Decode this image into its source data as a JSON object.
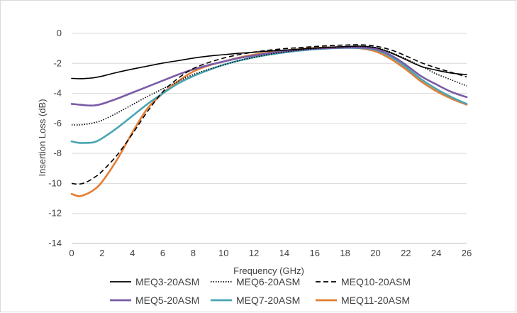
{
  "chart_data": {
    "type": "line",
    "title": "",
    "xlabel": "Frequency (GHz)",
    "ylabel": "Insertion Loss (dB)",
    "xlim": [
      0,
      26
    ],
    "ylim": [
      -14,
      0
    ],
    "x_ticks": [
      0,
      2,
      4,
      6,
      8,
      10,
      12,
      14,
      16,
      18,
      20,
      22,
      24,
      26
    ],
    "y_ticks": [
      0,
      -2,
      -4,
      -6,
      -8,
      -10,
      -12,
      -14
    ],
    "grid": "horizontal",
    "legend_position": "bottom",
    "x": [
      0,
      0.5,
      1,
      1.5,
      2,
      3,
      4,
      5,
      6,
      7,
      8,
      9,
      10,
      11,
      12,
      13,
      14,
      15,
      16,
      17,
      18,
      19,
      20,
      21,
      22,
      23,
      24,
      25,
      26
    ],
    "series": [
      {
        "name": "MEQ3-20ASM",
        "color": "#000000",
        "dash": "solid",
        "values": [
          -3.0,
          -3.02,
          -3.0,
          -2.95,
          -2.85,
          -2.6,
          -2.38,
          -2.18,
          -1.98,
          -1.82,
          -1.65,
          -1.52,
          -1.42,
          -1.33,
          -1.26,
          -1.18,
          -1.12,
          -1.05,
          -0.98,
          -0.92,
          -0.88,
          -0.85,
          -0.95,
          -1.3,
          -1.75,
          -2.2,
          -2.45,
          -2.65,
          -2.75
        ]
      },
      {
        "name": "MEQ6-20ASM",
        "color": "#000000",
        "dash": "dotted",
        "values": [
          -6.1,
          -6.1,
          -6.05,
          -5.95,
          -5.8,
          -5.3,
          -4.75,
          -4.2,
          -3.7,
          -3.2,
          -2.75,
          -2.4,
          -2.1,
          -1.82,
          -1.6,
          -1.4,
          -1.25,
          -1.12,
          -1.02,
          -0.95,
          -0.9,
          -0.88,
          -0.95,
          -1.25,
          -1.7,
          -2.2,
          -2.7,
          -3.1,
          -3.5
        ]
      },
      {
        "name": "MEQ10-20ASM",
        "color": "#000000",
        "dash": "dashed",
        "values": [
          -10.0,
          -10.05,
          -9.9,
          -9.6,
          -9.2,
          -8.1,
          -6.7,
          -5.2,
          -3.9,
          -3.0,
          -2.35,
          -1.95,
          -1.65,
          -1.42,
          -1.25,
          -1.12,
          -1.02,
          -0.95,
          -0.88,
          -0.82,
          -0.78,
          -0.76,
          -0.85,
          -1.1,
          -1.5,
          -1.95,
          -2.3,
          -2.6,
          -2.9
        ]
      },
      {
        "name": "MEQ5-20ASM",
        "color": "#7a5ba6",
        "dash": "solid",
        "values": [
          -4.7,
          -4.75,
          -4.8,
          -4.8,
          -4.7,
          -4.35,
          -3.95,
          -3.55,
          -3.15,
          -2.75,
          -2.4,
          -2.12,
          -1.88,
          -1.65,
          -1.48,
          -1.32,
          -1.2,
          -1.1,
          -1.02,
          -0.98,
          -0.95,
          -0.95,
          -1.05,
          -1.45,
          -2.1,
          -2.85,
          -3.4,
          -3.9,
          -4.25
        ]
      },
      {
        "name": "MEQ7-20ASM",
        "color": "#4aa5b3",
        "dash": "solid",
        "values": [
          -7.2,
          -7.3,
          -7.3,
          -7.25,
          -7.0,
          -6.3,
          -5.5,
          -4.7,
          -4.0,
          -3.35,
          -2.85,
          -2.45,
          -2.1,
          -1.82,
          -1.6,
          -1.42,
          -1.27,
          -1.15,
          -1.06,
          -1.0,
          -0.97,
          -0.98,
          -1.1,
          -1.55,
          -2.25,
          -3.05,
          -3.7,
          -4.25,
          -4.7
        ]
      },
      {
        "name": "MEQ11-20ASM",
        "color": "#e37d32",
        "dash": "solid",
        "values": [
          -10.7,
          -10.85,
          -10.7,
          -10.4,
          -9.9,
          -8.4,
          -6.6,
          -5.0,
          -4.0,
          -3.2,
          -2.55,
          -2.15,
          -1.88,
          -1.62,
          -1.42,
          -1.28,
          -1.16,
          -1.06,
          -0.98,
          -0.93,
          -0.93,
          -1.0,
          -1.2,
          -1.7,
          -2.4,
          -3.2,
          -3.85,
          -4.35,
          -4.75
        ]
      }
    ]
  }
}
